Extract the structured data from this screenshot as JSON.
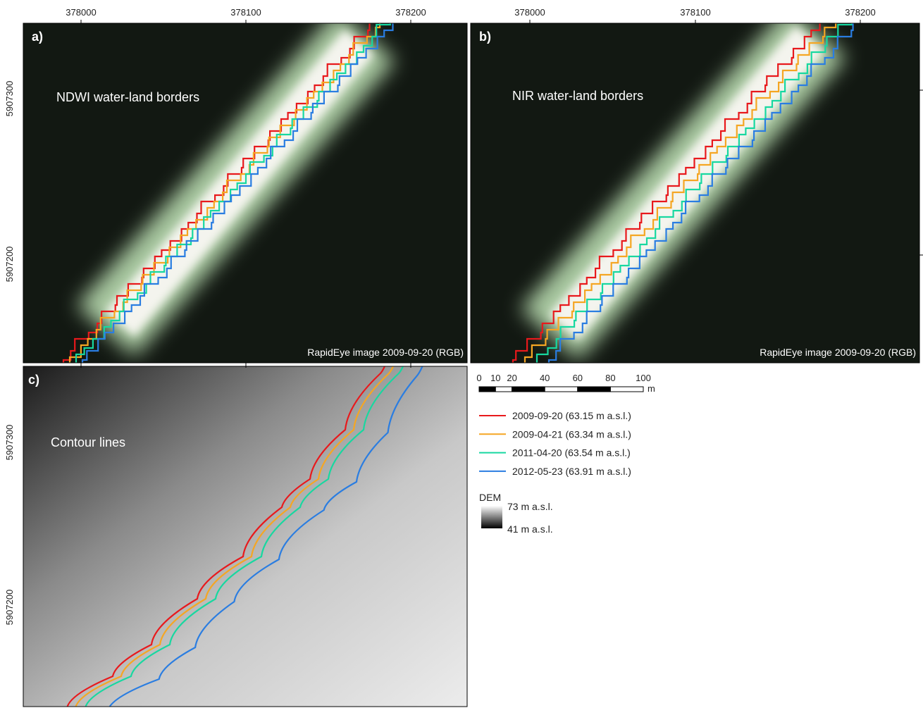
{
  "panels": [
    {
      "label": "a)",
      "title": "NDWI water-land borders",
      "credit": "RapidEye image 2009-09-20 (RGB)"
    },
    {
      "label": "b)",
      "title": "NIR water-land borders",
      "credit": "RapidEye image 2009-09-20 (RGB)"
    },
    {
      "label": "c)",
      "title": "Contour lines"
    }
  ],
  "x_ticks": [
    378000,
    378100,
    378200
  ],
  "y_ticks": [
    5907300,
    5907200
  ],
  "scale_bar": {
    "labels": [
      0,
      10,
      20,
      40,
      60,
      80,
      100
    ],
    "unit": "m"
  },
  "legend": {
    "items": [
      {
        "label": "2009-09-20 (63.15 m a.s.l.)",
        "color": "#e8191c"
      },
      {
        "label": "2009-04-21 (63.34 m a.s.l.)",
        "color": "#f5a623"
      },
      {
        "label": "2011-04-20 (63.54 m a.s.l.)",
        "color": "#17d8a0"
      },
      {
        "label": "2012-05-23 (63.91 m a.s.l.)",
        "color": "#2a7de1"
      }
    ]
  },
  "dem": {
    "title": "DEM",
    "high": "73 m a.s.l.",
    "low": "41 m a.s.l."
  }
}
